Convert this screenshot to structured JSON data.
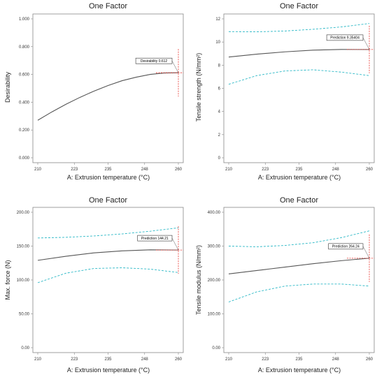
{
  "chart_data": [
    {
      "type": "line",
      "title": "One Factor",
      "xlabel": "A: Extrusion temperature (°C)",
      "ylabel": "Desirability",
      "xlim": [
        210,
        260
      ],
      "ylim": [
        0,
        1.0
      ],
      "x_ticks": [
        "210",
        "223",
        "235",
        "248",
        "260"
      ],
      "y_ticks": [
        "0.000",
        "0.200",
        "0.400",
        "0.600",
        "0.800",
        "1.000"
      ],
      "series": [
        {
          "x": [
            210,
            215,
            220,
            225,
            230,
            235,
            240,
            245,
            250,
            255,
            260
          ],
          "values": [
            0.27,
            0.33,
            0.385,
            0.435,
            0.48,
            0.52,
            0.555,
            0.58,
            0.6,
            0.61,
            0.612
          ]
        }
      ],
      "flag": {
        "label": "Desirability 0.612",
        "x": 260,
        "y": 0.612
      }
    },
    {
      "type": "line",
      "title": "One Factor",
      "xlabel": "A: Extrusion temperature (°C)",
      "ylabel": "Tensile strength (N/mm²)",
      "xlim": [
        210,
        260
      ],
      "ylim": [
        0,
        12
      ],
      "x_ticks": [
        "210",
        "223",
        "235",
        "248",
        "260"
      ],
      "y_ticks": [
        "0",
        "2",
        "4",
        "6",
        "8",
        "10",
        "12"
      ],
      "series": [
        {
          "x": [
            210,
            220,
            230,
            240,
            250,
            260
          ],
          "values": [
            8.7,
            8.95,
            9.15,
            9.3,
            9.36,
            9.35
          ]
        },
        {
          "x": [
            210,
            220,
            230,
            240,
            250,
            260
          ],
          "values": [
            10.9,
            10.88,
            10.95,
            11.1,
            11.3,
            11.6
          ]
        },
        {
          "x": [
            210,
            220,
            230,
            240,
            250,
            260
          ],
          "values": [
            6.35,
            7.1,
            7.5,
            7.6,
            7.4,
            7.1
          ]
        }
      ],
      "flag": {
        "label": "Prediction 9.35404",
        "x": 260,
        "y": 9.35404
      }
    },
    {
      "type": "line",
      "title": "One Factor",
      "xlabel": "A: Extrusion temperature (°C)",
      "ylabel": "Max. force (N)",
      "xlim": [
        210,
        260
      ],
      "ylim": [
        0,
        200
      ],
      "x_ticks": [
        "210",
        "223",
        "235",
        "248",
        "260"
      ],
      "y_ticks": [
        "0.00",
        "50.00",
        "100.00",
        "150.00",
        "200.00"
      ],
      "series": [
        {
          "x": [
            210,
            220,
            230,
            240,
            250,
            260
          ],
          "values": [
            129,
            135,
            140,
            143,
            144.5,
            144.21
          ]
        },
        {
          "x": [
            210,
            220,
            230,
            240,
            250,
            260
          ],
          "values": [
            162,
            163,
            165,
            168,
            172,
            177
          ]
        },
        {
          "x": [
            210,
            220,
            230,
            240,
            250,
            260
          ],
          "values": [
            96,
            110,
            117,
            118,
            116,
            111
          ]
        }
      ],
      "flag": {
        "label": "Prediction 144.21",
        "x": 260,
        "y": 144.21
      }
    },
    {
      "type": "line",
      "title": "One Factor",
      "xlabel": "A: Extrusion temperature (°C)",
      "ylabel": "Tensile modulus (N/mm²)",
      "xlim": [
        210,
        260
      ],
      "ylim": [
        0,
        400
      ],
      "x_ticks": [
        "210",
        "223",
        "235",
        "248",
        "260"
      ],
      "y_ticks": [
        "0.00",
        "100.00",
        "200.00",
        "300.00",
        "400.00"
      ],
      "series": [
        {
          "x": [
            210,
            220,
            230,
            240,
            250,
            260
          ],
          "values": [
            218,
            228,
            238,
            248,
            257,
            264.24
          ]
        },
        {
          "x": [
            210,
            220,
            230,
            240,
            250,
            260
          ],
          "values": [
            300,
            298,
            302,
            310,
            325,
            345
          ]
        },
        {
          "x": [
            210,
            220,
            230,
            240,
            250,
            260
          ],
          "values": [
            135,
            165,
            182,
            188,
            188,
            182
          ]
        }
      ],
      "flag": {
        "label": "Prediction 264.24",
        "x": 260,
        "y": 264.24
      }
    }
  ],
  "colors": {
    "fit": "#555555",
    "band": "#2bb8c6",
    "marker": "#e8302a",
    "axis": "#888888"
  }
}
